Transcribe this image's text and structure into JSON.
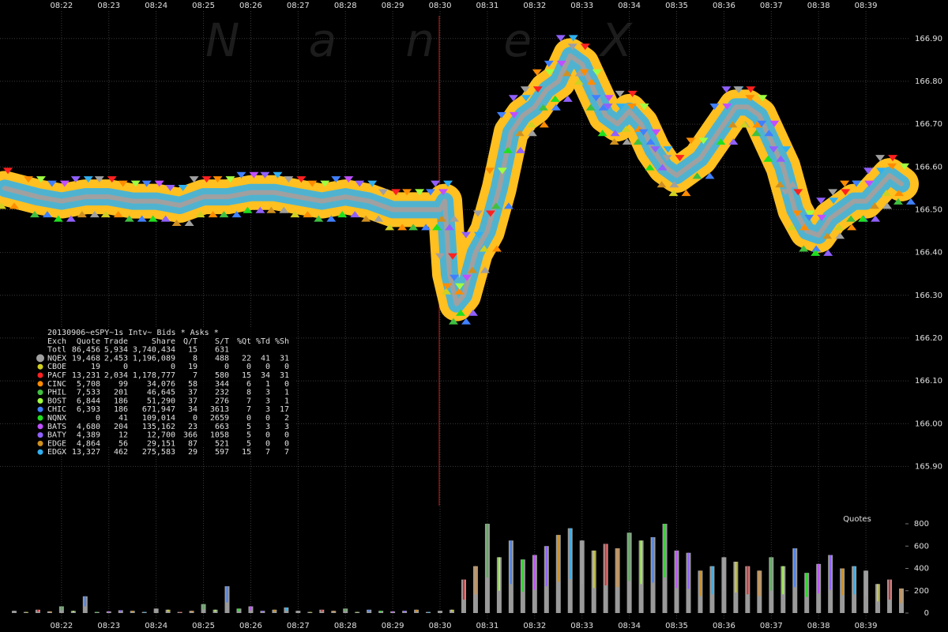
{
  "chart_data": [
    {
      "type": "line",
      "watermark": "N a n e X",
      "grid": true,
      "xlim": [
        20.7,
        39.9
      ],
      "xticks": [
        {
          "value": 22,
          "label": "08:22"
        },
        {
          "value": 23,
          "label": "08:23"
        },
        {
          "value": 24,
          "label": "08:24"
        },
        {
          "value": 25,
          "label": "08:25"
        },
        {
          "value": 26,
          "label": "08:26"
        },
        {
          "value": 27,
          "label": "08:27"
        },
        {
          "value": 28,
          "label": "08:28"
        },
        {
          "value": 29,
          "label": "08:29"
        },
        {
          "value": 30,
          "label": "08:30"
        },
        {
          "value": 31,
          "label": "08:31"
        },
        {
          "value": 32,
          "label": "08:32"
        },
        {
          "value": 33,
          "label": "08:33"
        },
        {
          "value": 34,
          "label": "08:34"
        },
        {
          "value": 35,
          "label": "08:35"
        },
        {
          "value": 36,
          "label": "08:36"
        },
        {
          "value": 37,
          "label": "08:37"
        },
        {
          "value": 38,
          "label": "08:38"
        },
        {
          "value": 39,
          "label": "08:39"
        }
      ],
      "ylim": [
        165.79,
        166.99
      ],
      "yticks": [
        {
          "value": 165.9,
          "label": "165.90"
        },
        {
          "value": 166.0,
          "label": "166.00"
        },
        {
          "value": 166.1,
          "label": "166.10"
        },
        {
          "value": 166.2,
          "label": "166.20"
        },
        {
          "value": 166.3,
          "label": "166.30"
        },
        {
          "value": 166.4,
          "label": "166.40"
        },
        {
          "value": 166.5,
          "label": "166.50"
        },
        {
          "value": 166.6,
          "label": "166.60"
        },
        {
          "value": 166.7,
          "label": "166.70"
        },
        {
          "value": 166.8,
          "label": "166.80"
        },
        {
          "value": 166.9,
          "label": "166.90"
        }
      ],
      "x": [
        20.8,
        21.5,
        22,
        22.5,
        23,
        23.5,
        24,
        24.5,
        25,
        25.5,
        26,
        26.5,
        27,
        27.5,
        28,
        28.5,
        29,
        29.5,
        30,
        30.1,
        30.2,
        30.35,
        30.5,
        30.75,
        31,
        31.25,
        31.5,
        31.75,
        32,
        32.25,
        32.5,
        32.75,
        33,
        33.25,
        33.5,
        33.75,
        34,
        34.25,
        34.5,
        34.75,
        35,
        35.5,
        36,
        36.25,
        36.5,
        36.75,
        37,
        37.25,
        37.5,
        37.75,
        38,
        38.25,
        38.5,
        38.75,
        39,
        39.25,
        39.5,
        39.75
      ],
      "series": [
        {
          "color": "#ffc020",
          "values": [
            166.55,
            166.53,
            166.52,
            166.53,
            166.53,
            166.52,
            166.52,
            166.51,
            166.53,
            166.53,
            166.54,
            166.54,
            166.53,
            166.52,
            166.53,
            166.52,
            166.5,
            166.5,
            166.5,
            166.52,
            166.35,
            166.28,
            166.3,
            166.4,
            166.45,
            166.55,
            166.68,
            166.72,
            166.74,
            166.78,
            166.8,
            166.86,
            166.84,
            166.78,
            166.72,
            166.7,
            166.73,
            166.7,
            166.64,
            166.6,
            166.58,
            166.62,
            166.7,
            166.74,
            166.74,
            166.72,
            166.66,
            166.6,
            166.5,
            166.45,
            166.44,
            166.48,
            166.5,
            166.52,
            166.52,
            166.55,
            166.58,
            166.56
          ]
        }
      ]
    },
    {
      "type": "bar",
      "title": "Quotes",
      "color": "#9a9a9a",
      "xlim": [
        20.7,
        39.9
      ],
      "xticks": [
        {
          "value": 22,
          "label": "08:22"
        },
        {
          "value": 23,
          "label": "08:23"
        },
        {
          "value": 24,
          "label": "08:24"
        },
        {
          "value": 25,
          "label": "08:25"
        },
        {
          "value": 26,
          "label": "08:26"
        },
        {
          "value": 27,
          "label": "08:27"
        },
        {
          "value": 28,
          "label": "08:28"
        },
        {
          "value": 29,
          "label": "08:29"
        },
        {
          "value": 30,
          "label": "08:30"
        },
        {
          "value": 31,
          "label": "08:31"
        },
        {
          "value": 32,
          "label": "08:32"
        },
        {
          "value": 33,
          "label": "08:33"
        },
        {
          "value": 34,
          "label": "08:34"
        },
        {
          "value": 35,
          "label": "08:35"
        },
        {
          "value": 36,
          "label": "08:36"
        },
        {
          "value": 37,
          "label": "08:37"
        },
        {
          "value": 38,
          "label": "08:38"
        },
        {
          "value": 39,
          "label": "08:39"
        }
      ],
      "ylim": [
        0,
        800
      ],
      "yticks": [
        0,
        200,
        400,
        600,
        800
      ],
      "x": [
        21,
        21.25,
        21.5,
        21.75,
        22,
        22.25,
        22.5,
        22.75,
        23,
        23.25,
        23.5,
        23.75,
        24,
        24.25,
        24.5,
        24.75,
        25,
        25.25,
        25.5,
        25.75,
        26,
        26.25,
        26.5,
        26.75,
        27,
        27.25,
        27.5,
        27.75,
        28,
        28.25,
        28.5,
        28.75,
        29,
        29.25,
        29.5,
        29.75,
        30,
        30.25,
        30.5,
        30.75,
        31,
        31.25,
        31.5,
        31.75,
        32,
        32.25,
        32.5,
        32.75,
        33,
        33.25,
        33.5,
        33.75,
        34,
        34.25,
        34.5,
        34.75,
        35,
        35.25,
        35.5,
        35.75,
        36,
        36.25,
        36.5,
        36.75,
        37,
        37.25,
        37.5,
        37.75,
        38,
        38.25,
        38.5,
        38.75,
        39,
        39.25,
        39.5,
        39.75
      ],
      "values": [
        20,
        10,
        30,
        15,
        60,
        20,
        150,
        10,
        15,
        25,
        20,
        10,
        40,
        30,
        10,
        20,
        80,
        30,
        240,
        40,
        60,
        20,
        30,
        50,
        20,
        10,
        30,
        20,
        40,
        10,
        30,
        20,
        15,
        20,
        30,
        10,
        20,
        30,
        300,
        420,
        800,
        500,
        650,
        480,
        520,
        600,
        700,
        760,
        650,
        560,
        620,
        580,
        720,
        650,
        680,
        800,
        560,
        540,
        380,
        420,
        500,
        460,
        420,
        380,
        500,
        420,
        580,
        360,
        440,
        520,
        400,
        420,
        380,
        260,
        300,
        220
      ]
    }
  ],
  "table": {
    "title": "20130906~eSPY~1s Intv~ Bids * Asks *",
    "header": [
      "Exch",
      "Quote",
      "Trade",
      "Share",
      "Q/T",
      "S/T",
      "%Qt",
      "%Td",
      "%Sh"
    ],
    "rows": [
      {
        "cells": [
          "Totl",
          "86,456",
          "5,934",
          "3,740,434",
          "15",
          "631"
        ]
      },
      {
        "color": "#a0a0a0",
        "cells": [
          "NQEX",
          "19,468",
          "2,453",
          "1,196,089",
          "8",
          "488",
          "22",
          "41",
          "31"
        ]
      },
      {
        "color": "#d0d020",
        "cells": [
          "CBOE",
          "19",
          "0",
          "0",
          "19",
          "0",
          "0",
          "0",
          "0"
        ]
      },
      {
        "color": "#ff2020",
        "cells": [
          "PACF",
          "13,231",
          "2,034",
          "1,178,777",
          "7",
          "580",
          "15",
          "34",
          "31"
        ]
      },
      {
        "color": "#ff8c00",
        "cells": [
          "CINC",
          "5,708",
          "99",
          "34,076",
          "58",
          "344",
          "6",
          "1",
          "0"
        ]
      },
      {
        "color": "#40c040",
        "cells": [
          "PHIL",
          "7,533",
          "201",
          "46,645",
          "37",
          "232",
          "8",
          "3",
          "1"
        ]
      },
      {
        "color": "#a0ff40",
        "cells": [
          "BOST",
          "6,844",
          "186",
          "51,290",
          "37",
          "276",
          "7",
          "3",
          "1"
        ]
      },
      {
        "color": "#4080ff",
        "cells": [
          "CHIC",
          "6,393",
          "186",
          "671,947",
          "34",
          "3613",
          "7",
          "3",
          "17"
        ]
      },
      {
        "color": "#20e020",
        "cells": [
          "NQNX",
          "0",
          "41",
          "109,014",
          "0",
          "2659",
          "0",
          "0",
          "2"
        ]
      },
      {
        "color": "#c050ff",
        "cells": [
          "BATS",
          "4,680",
          "204",
          "135,162",
          "23",
          "663",
          "5",
          "3",
          "3"
        ]
      },
      {
        "color": "#9060ff",
        "cells": [
          "BATY",
          "4,389",
          "12",
          "12,700",
          "366",
          "1058",
          "5",
          "0",
          "0"
        ]
      },
      {
        "color": "#d09020",
        "cells": [
          "EDGE",
          "4,864",
          "56",
          "29,151",
          "87",
          "521",
          "5",
          "0",
          "0"
        ]
      },
      {
        "color": "#30b0f0",
        "cells": [
          "EDGX",
          "13,327",
          "462",
          "275,583",
          "29",
          "597",
          "15",
          "7",
          "7"
        ]
      }
    ]
  }
}
